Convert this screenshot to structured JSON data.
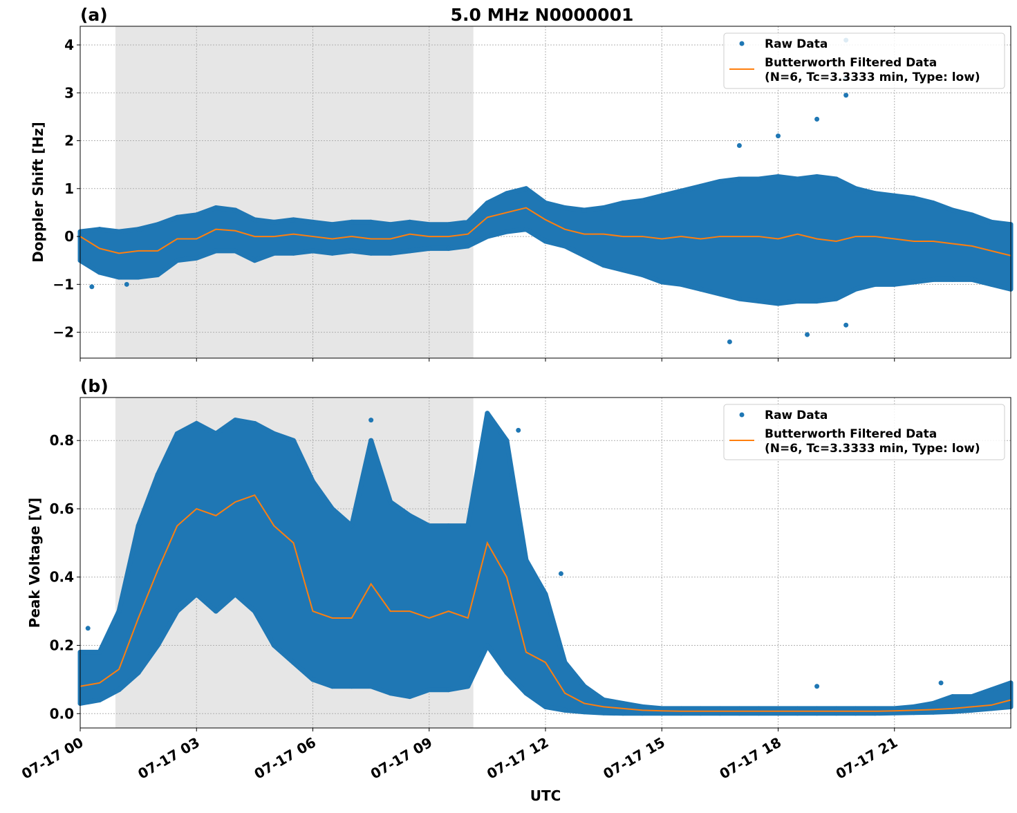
{
  "title": "5.0 MHz N0000001",
  "xlabel": "UTC",
  "x_tick_labels": [
    "07-17 00",
    "07-17 03",
    "07-17 06",
    "07-17 09",
    "07-17 12",
    "07-17 15",
    "07-17 18",
    "07-17 21"
  ],
  "x_ticks_hours": [
    0,
    3,
    6,
    9,
    12,
    15,
    18,
    21
  ],
  "xlim_hours": [
    0,
    24
  ],
  "shaded_interval_hours": [
    0.91,
    10.14
  ],
  "colors": {
    "raw": "#1f77b4",
    "filtered": "#ff7f0e",
    "shade": "#e6e6e6"
  },
  "legend": {
    "raw": "Raw Data",
    "filtered_line1": "Butterworth Filtered Data",
    "filtered_line2": "(N=6, Tc=3.3333 min, Type: low)",
    "placement": "top-right"
  },
  "chart_data": [
    {
      "type": "scatter+line",
      "panel_label": "(a)",
      "ylabel": "Doppler Shift [Hz]",
      "ylim": [
        -2.54,
        4.39
      ],
      "y_ticks": [
        -2,
        -1,
        0,
        1,
        2,
        3,
        4
      ],
      "y_tick_labels": [
        "−2",
        "−1",
        "0",
        "1",
        "2",
        "3",
        "4"
      ],
      "grid": true,
      "x_hours": [
        0,
        0.5,
        1,
        1.5,
        2,
        2.5,
        3,
        3.5,
        4,
        4.5,
        5,
        5.5,
        6,
        6.5,
        7,
        7.5,
        8,
        8.5,
        9,
        9.5,
        10,
        10.5,
        11,
        11.5,
        12,
        12.5,
        13,
        13.5,
        14,
        14.5,
        15,
        15.5,
        16,
        16.5,
        17,
        17.5,
        18,
        18.5,
        19,
        19.5,
        20,
        20.5,
        21,
        21.5,
        22,
        22.5,
        23,
        23.5,
        24
      ],
      "series": [
        {
          "name": "Butterworth Filtered Data",
          "kind": "line",
          "values": [
            0,
            -0.25,
            -0.35,
            -0.3,
            -0.3,
            -0.05,
            -0.05,
            0.15,
            0.12,
            0.0,
            0.0,
            0.05,
            0.0,
            -0.05,
            0.0,
            -0.05,
            -0.05,
            0.05,
            0.0,
            0.0,
            0.05,
            0.4,
            0.5,
            0.6,
            0.35,
            0.15,
            0.05,
            0.05,
            0.0,
            0.0,
            -0.05,
            0.0,
            -0.05,
            0.0,
            0.0,
            0.0,
            -0.05,
            0.05,
            -0.05,
            -0.1,
            0.0,
            0.0,
            -0.05,
            -0.1,
            -0.1,
            -0.15,
            -0.2,
            -0.3,
            -0.4
          ]
        },
        {
          "name": "Raw Data",
          "kind": "scatter-envelope",
          "lower": [
            -0.5,
            -0.75,
            -0.85,
            -0.85,
            -0.8,
            -0.5,
            -0.45,
            -0.3,
            -0.3,
            -0.5,
            -0.35,
            -0.35,
            -0.3,
            -0.35,
            -0.3,
            -0.35,
            -0.35,
            -0.3,
            -0.25,
            -0.25,
            -0.2,
            0.0,
            0.1,
            0.15,
            -0.1,
            -0.2,
            -0.4,
            -0.6,
            -0.7,
            -0.8,
            -0.95,
            -1.0,
            -1.1,
            -1.2,
            -1.3,
            -1.35,
            -1.4,
            -1.35,
            -1.35,
            -1.3,
            -1.1,
            -1.0,
            -1.0,
            -0.95,
            -0.9,
            -0.9,
            -0.9,
            -1.0,
            -1.1
          ],
          "upper": [
            0.1,
            0.15,
            0.1,
            0.15,
            0.25,
            0.4,
            0.45,
            0.6,
            0.55,
            0.35,
            0.3,
            0.35,
            0.3,
            0.25,
            0.3,
            0.3,
            0.25,
            0.3,
            0.25,
            0.25,
            0.3,
            0.7,
            0.9,
            1.0,
            0.7,
            0.6,
            0.55,
            0.6,
            0.7,
            0.75,
            0.85,
            0.95,
            1.05,
            1.15,
            1.2,
            1.2,
            1.25,
            1.2,
            1.25,
            1.2,
            1.0,
            0.9,
            0.85,
            0.8,
            0.7,
            0.55,
            0.45,
            0.3,
            0.25
          ],
          "outliers": [
            [
              19.75,
              4.1
            ],
            [
              19.75,
              3.3
            ],
            [
              19.75,
              2.95
            ],
            [
              19.0,
              2.45
            ],
            [
              18.0,
              2.1
            ],
            [
              17.0,
              1.9
            ],
            [
              16.75,
              -2.2
            ],
            [
              18.75,
              -2.05
            ],
            [
              19.75,
              -1.85
            ],
            [
              1.2,
              -1.0
            ],
            [
              0.3,
              -1.05
            ]
          ]
        }
      ]
    },
    {
      "type": "scatter+line",
      "panel_label": "(b)",
      "ylabel": "Peak Voltage [V]",
      "ylim": [
        -0.042,
        0.926
      ],
      "y_ticks": [
        0,
        0.2,
        0.4,
        0.6,
        0.8
      ],
      "y_tick_labels": [
        "0.0",
        "0.2",
        "0.4",
        "0.6",
        "0.8"
      ],
      "grid": true,
      "x_hours": [
        0,
        0.5,
        1,
        1.5,
        2,
        2.5,
        3,
        3.5,
        4,
        4.5,
        5,
        5.5,
        6,
        6.5,
        7,
        7.5,
        8,
        8.5,
        9,
        9.5,
        10,
        10.5,
        11,
        11.5,
        12,
        12.5,
        13,
        13.5,
        14,
        14.5,
        15,
        15.5,
        16,
        16.5,
        17,
        17.5,
        18,
        18.5,
        19,
        19.5,
        20,
        20.5,
        21,
        21.5,
        22,
        22.5,
        23,
        23.5,
        24
      ],
      "series": [
        {
          "name": "Butterworth Filtered Data",
          "kind": "line",
          "values": [
            0.08,
            0.09,
            0.13,
            0.28,
            0.42,
            0.55,
            0.6,
            0.58,
            0.62,
            0.64,
            0.55,
            0.5,
            0.3,
            0.28,
            0.28,
            0.38,
            0.3,
            0.3,
            0.28,
            0.3,
            0.28,
            0.5,
            0.4,
            0.18,
            0.15,
            0.06,
            0.03,
            0.02,
            0.015,
            0.01,
            0.008,
            0.007,
            0.007,
            0.007,
            0.007,
            0.007,
            0.007,
            0.007,
            0.007,
            0.007,
            0.007,
            0.007,
            0.008,
            0.01,
            0.012,
            0.015,
            0.02,
            0.025,
            0.04
          ]
        },
        {
          "name": "Raw Data",
          "kind": "scatter-envelope",
          "lower": [
            0.03,
            0.04,
            0.07,
            0.12,
            0.2,
            0.3,
            0.35,
            0.3,
            0.35,
            0.3,
            0.2,
            0.15,
            0.1,
            0.08,
            0.08,
            0.08,
            0.06,
            0.05,
            0.07,
            0.07,
            0.08,
            0.2,
            0.12,
            0.06,
            0.02,
            0.01,
            0.005,
            0.002,
            0.001,
            0.001,
            0.001,
            0.001,
            0.001,
            0.001,
            0.001,
            0.001,
            0.001,
            0.001,
            0.001,
            0.001,
            0.001,
            0.001,
            0.002,
            0.003,
            0.004,
            0.006,
            0.01,
            0.015,
            0.02
          ],
          "upper": [
            0.18,
            0.18,
            0.3,
            0.55,
            0.7,
            0.82,
            0.85,
            0.82,
            0.86,
            0.85,
            0.82,
            0.8,
            0.68,
            0.6,
            0.55,
            0.8,
            0.62,
            0.58,
            0.55,
            0.55,
            0.55,
            0.88,
            0.8,
            0.45,
            0.35,
            0.15,
            0.08,
            0.04,
            0.03,
            0.02,
            0.015,
            0.015,
            0.015,
            0.015,
            0.015,
            0.015,
            0.015,
            0.015,
            0.015,
            0.015,
            0.015,
            0.015,
            0.015,
            0.02,
            0.03,
            0.05,
            0.05,
            0.07,
            0.09
          ],
          "outliers": [
            [
              0.2,
              0.25
            ],
            [
              7.5,
              0.86
            ],
            [
              11.3,
              0.83
            ],
            [
              12.4,
              0.41
            ],
            [
              19.0,
              0.08
            ],
            [
              22.2,
              0.09
            ]
          ]
        }
      ]
    }
  ]
}
